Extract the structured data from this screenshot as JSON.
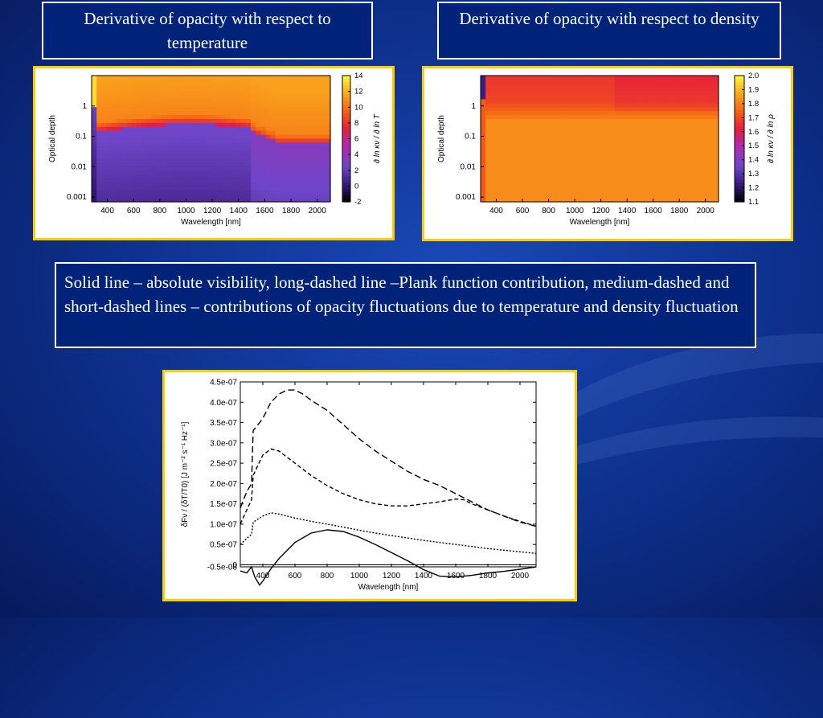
{
  "slide": {
    "title_temperature": "Derivative of opacity with respect to temperature",
    "title_density": "Derivative of opacity with respect to density",
    "caption": "Solid line – absolute visibility,  long-dashed line –Plank function contribution, medium-dashed and short-dashed lines – contributions of opacity fluctuations due to temperature and density fluctuation"
  },
  "chart_data": [
    {
      "type": "heatmap",
      "xlabel": "Wavelength [nm]",
      "ylabel": "Optical depth",
      "colorbar_label": "∂ ln κν / ∂ ln T",
      "x_ticks": [
        "400",
        "600",
        "800",
        "1000",
        "1200",
        "1400",
        "1600",
        "1800",
        "2000"
      ],
      "y_ticks": [
        "0.001",
        "0.01",
        "0.1",
        "1"
      ],
      "colorbar_ticks": [
        "-2",
        "0",
        "2",
        "4",
        "6",
        "8",
        "10",
        "12",
        "14"
      ],
      "xlim": [
        280,
        2100
      ],
      "ylim_log": [
        0.0007,
        10
      ],
      "colorbar_range": [
        -2,
        14
      ],
      "description_values": {
        "upper_layers": 11,
        "lower_layers": 2,
        "near_330nm_deep": -2
      }
    },
    {
      "type": "heatmap",
      "xlabel": "Wavelength [nm]",
      "ylabel": "Optical depth",
      "colorbar_label": "∂ ln κν / ∂ ln ρ",
      "x_ticks": [
        "400",
        "600",
        "800",
        "1000",
        "1200",
        "1400",
        "1600",
        "1800",
        "2000"
      ],
      "y_ticks": [
        "0.001",
        "0.01",
        "0.1",
        "1"
      ],
      "colorbar_ticks": [
        "1.1",
        "1.2",
        "1.3",
        "1.4",
        "1.5",
        "1.6",
        "1.7",
        "1.8",
        "1.9",
        "2.0"
      ],
      "xlim": [
        280,
        2100
      ],
      "ylim_log": [
        0.0007,
        10
      ],
      "colorbar_range": [
        1.1,
        2.0
      ],
      "description_values": {
        "upper_layers": 1.6,
        "lower_layers": 1.85
      }
    },
    {
      "type": "line",
      "xlabel": "Wavelength [nm]",
      "ylabel": "δFν / (δT/T0) [J m⁻² s⁻¹ Hz⁻¹]",
      "x_ticks": [
        "400",
        "600",
        "800",
        "1000",
        "1200",
        "1400",
        "1600",
        "1800",
        "2000"
      ],
      "y_ticks": [
        "-0.5e-08",
        "0",
        "0.5e-07",
        "1.0e-07",
        "1.5e-07",
        "2.0e-07",
        "2.5e-07",
        "3.0e-07",
        "3.5e-07",
        "4.0e-07",
        "4.5e-07"
      ],
      "xlim": [
        260,
        2100
      ],
      "ylim": [
        -5e-09,
        4.5e-07
      ],
      "series": [
        {
          "style": "solid",
          "x": [
            260,
            300,
            330,
            350,
            380,
            400,
            450,
            500,
            600,
            700,
            800,
            900,
            1000,
            1100,
            1200,
            1300,
            1400,
            1500,
            1600,
            1700,
            1800,
            1900,
            2000,
            2100
          ],
          "y": [
            -1.5e-08,
            -2e-08,
            -5e-09,
            -3e-08,
            -5e-08,
            -4e-08,
            -1e-08,
            1.5e-08,
            5.5e-08,
            7.8e-08,
            8.6e-08,
            8.2e-08,
            6.8e-08,
            5e-08,
            3e-08,
            1e-08,
            -1.2e-08,
            -2.8e-08,
            -3e-08,
            -2.6e-08,
            -2e-08,
            -1.6e-08,
            -1.1e-08,
            -5e-09
          ]
        },
        {
          "style": "long-dashed",
          "x": [
            260,
            300,
            330,
            340,
            400,
            450,
            500,
            550,
            600,
            650,
            700,
            800,
            900,
            1000,
            1100,
            1200,
            1300,
            1400,
            1500,
            1600,
            1700,
            1800,
            1900,
            2000,
            2100
          ],
          "y": [
            1.4e-07,
            1.8e-07,
            2e-07,
            3.3e-07,
            3.6e-07,
            4e-07,
            4.2e-07,
            4.3e-07,
            4.3e-07,
            4.2e-07,
            4.05e-07,
            3.8e-07,
            3.45e-07,
            3.1e-07,
            2.8e-07,
            2.55e-07,
            2.3e-07,
            2.1e-07,
            1.95e-07,
            1.75e-07,
            1.55e-07,
            1.35e-07,
            1.2e-07,
            1.05e-07,
            9.5e-08
          ]
        },
        {
          "style": "medium-dashed",
          "x": [
            260,
            300,
            330,
            340,
            400,
            450,
            500,
            600,
            700,
            800,
            900,
            1000,
            1100,
            1200,
            1300,
            1400,
            1500,
            1600,
            1650,
            1700,
            1800,
            1900,
            2000,
            2100
          ],
          "y": [
            1e-07,
            1.35e-07,
            1.6e-07,
            2.2e-07,
            2.7e-07,
            2.85e-07,
            2.8e-07,
            2.5e-07,
            2.2e-07,
            1.95e-07,
            1.75e-07,
            1.6e-07,
            1.5e-07,
            1.45e-07,
            1.45e-07,
            1.5e-07,
            1.55e-07,
            1.62e-07,
            1.6e-07,
            1.5e-07,
            1.35e-07,
            1.2e-07,
            1.07e-07,
            9.5e-08
          ]
        },
        {
          "style": "short-dashed",
          "x": [
            260,
            300,
            330,
            340,
            400,
            450,
            500,
            600,
            700,
            800,
            900,
            1000,
            1100,
            1200,
            1300,
            1400,
            1500,
            1600,
            1700,
            1800,
            1900,
            2000,
            2100
          ],
          "y": [
            5e-08,
            6.5e-08,
            7.5e-08,
            1.05e-07,
            1.2e-07,
            1.28e-07,
            1.25e-07,
            1.15e-07,
            1.07e-07,
            1e-07,
            9.3e-08,
            8.5e-08,
            7.8e-08,
            7.2e-08,
            6.6e-08,
            6e-08,
            5.5e-08,
            5e-08,
            4.5e-08,
            4e-08,
            3.6e-08,
            3.2e-08,
            2.8e-08
          ]
        }
      ]
    }
  ]
}
